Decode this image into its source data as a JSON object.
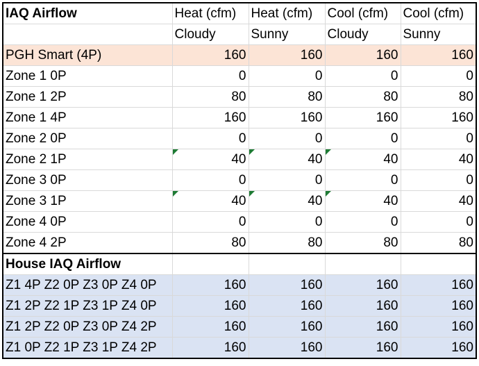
{
  "header": {
    "title": "IAQ Airflow",
    "columns": [
      {
        "top": "Heat (cfm)",
        "bottom": "Cloudy"
      },
      {
        "top": "Heat (cfm)",
        "bottom": "Sunny"
      },
      {
        "top": "Cool (cfm)",
        "bottom": "Cloudy"
      },
      {
        "top": "Cool (cfm)",
        "bottom": "Sunny"
      }
    ]
  },
  "pgh_row": {
    "label": "PGH Smart (4P)",
    "values": [
      "160",
      "160",
      "160",
      "160"
    ]
  },
  "zone_rows": [
    {
      "label": "Zone 1 0P",
      "values": [
        "0",
        "0",
        "0",
        "0"
      ]
    },
    {
      "label": "Zone 1 2P",
      "values": [
        "80",
        "80",
        "80",
        "80"
      ]
    },
    {
      "label": "Zone 1 4P",
      "values": [
        "160",
        "160",
        "160",
        "160"
      ]
    },
    {
      "label": "Zone 2 0P",
      "values": [
        "0",
        "0",
        "0",
        "0"
      ]
    },
    {
      "label": "Zone 2 1P",
      "values": [
        "40",
        "40",
        "40",
        "40"
      ]
    },
    {
      "label": "Zone 3 0P",
      "values": [
        "0",
        "0",
        "0",
        "0"
      ]
    },
    {
      "label": "Zone 3 1P",
      "values": [
        "40",
        "40",
        "40",
        "40"
      ]
    },
    {
      "label": "Zone 4 0P",
      "values": [
        "0",
        "0",
        "0",
        "0"
      ]
    },
    {
      "label": "Zone 4 2P",
      "values": [
        "80",
        "80",
        "80",
        "80"
      ]
    }
  ],
  "house_section": {
    "title": "House IAQ Airflow",
    "rows": [
      {
        "label": "Z1 4P Z2 0P Z3 0P Z4 0P",
        "values": [
          "160",
          "160",
          "160",
          "160"
        ]
      },
      {
        "label": "Z1 2P Z2 1P Z3 1P Z4 0P",
        "values": [
          "160",
          "160",
          "160",
          "160"
        ]
      },
      {
        "label": "Z1 2P Z2 0P Z3 0P Z4 2P",
        "values": [
          "160",
          "160",
          "160",
          "160"
        ]
      },
      {
        "label": "Z1 0P Z2 1P Z3 1P Z4 2P",
        "values": [
          "160",
          "160",
          "160",
          "160"
        ]
      }
    ]
  },
  "colors": {
    "pgh_fill": "#fce4d6",
    "house_fill": "#dae3f3",
    "gridline": "#d9d9d9",
    "comment_flag": "#1e7b34"
  }
}
